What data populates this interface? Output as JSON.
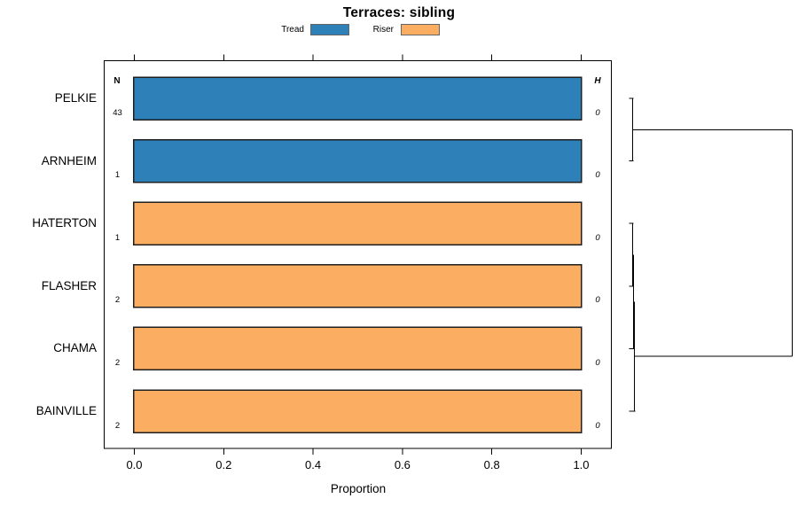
{
  "title": "Terraces: sibling",
  "legend": {
    "items": [
      {
        "label": "Tread",
        "color": "#2e81b8"
      },
      {
        "label": "Riser",
        "color": "#fbad62"
      }
    ]
  },
  "columns": {
    "n_header": "N",
    "h_header": "H"
  },
  "x_axis": {
    "label": "Proportion",
    "ticks": [
      "0.0",
      "0.2",
      "0.4",
      "0.6",
      "0.8",
      "1.0"
    ]
  },
  "chart_data": {
    "type": "bar",
    "orientation": "horizontal",
    "title": "Terraces: sibling",
    "xlabel": "Proportion",
    "xlim": [
      0,
      1
    ],
    "x_tick_values": [
      0.0,
      0.2,
      0.4,
      0.6,
      0.8,
      1.0
    ],
    "grid": false,
    "legend_position": "top",
    "legend_entries": [
      "Tread",
      "Riser"
    ],
    "categories": [
      "PELKIE",
      "ARNHEIM",
      "HATERTON",
      "FLASHER",
      "CHAMA",
      "BAINVILLE"
    ],
    "rows": [
      {
        "category": "PELKIE",
        "segment": "Tread",
        "proportion": 1.0,
        "N": "43",
        "H": "0"
      },
      {
        "category": "ARNHEIM",
        "segment": "Tread",
        "proportion": 1.0,
        "N": "1",
        "H": "0"
      },
      {
        "category": "HATERTON",
        "segment": "Riser",
        "proportion": 1.0,
        "N": "1",
        "H": "0"
      },
      {
        "category": "FLASHER",
        "segment": "Riser",
        "proportion": 1.0,
        "N": "2",
        "H": "0"
      },
      {
        "category": "CHAMA",
        "segment": "Riser",
        "proportion": 1.0,
        "N": "2",
        "H": "0"
      },
      {
        "category": "BAINVILLE",
        "segment": "Riser",
        "proportion": 1.0,
        "N": "2",
        "H": "0"
      }
    ],
    "segment_colors": {
      "Tread": "#2e81b8",
      "Riser": "#fbad62"
    },
    "dendrogram": {
      "side": "right",
      "clusters": [
        {
          "leaves": [
            "PELKIE",
            "ARNHEIM"
          ]
        },
        {
          "leaves": [
            "HATERTON",
            "FLASHER",
            "CHAMA",
            "BAINVILLE"
          ]
        }
      ],
      "leaf_heights": [
        0,
        0,
        0,
        0,
        0,
        0
      ]
    }
  },
  "colors": {
    "bar_tread": "#2e81b8",
    "bar_riser": "#fbad62",
    "bar_border": "#1f1f1f",
    "axis_line": "#000000",
    "dendro_line": "#000000",
    "swatch_border": "#666666"
  }
}
